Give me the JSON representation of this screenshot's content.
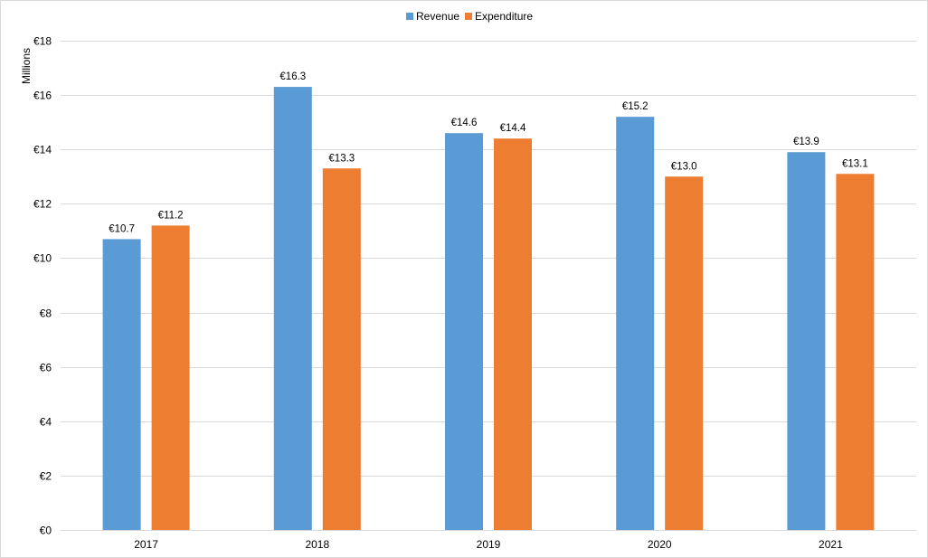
{
  "chart_data": {
    "type": "bar",
    "title": "",
    "xlabel": "",
    "ylabel": "Millions",
    "categories": [
      "2017",
      "2018",
      "2019",
      "2020",
      "2021"
    ],
    "series": [
      {
        "name": "Revenue",
        "color": "#5B9BD5",
        "values": [
          10.7,
          16.3,
          14.6,
          15.2,
          13.9
        ],
        "labels": [
          "€10.7",
          "€16.3",
          "€14.6",
          "€15.2",
          "€13.9"
        ]
      },
      {
        "name": "Expenditure",
        "color": "#ED7D31",
        "values": [
          11.2,
          13.3,
          14.4,
          13.0,
          13.1
        ],
        "labels": [
          "€11.2",
          "€13.3",
          "€14.4",
          "€13.0",
          "€13.1"
        ]
      }
    ],
    "ylim": [
      0,
      18
    ],
    "y_ticks": [
      0,
      2,
      4,
      6,
      8,
      10,
      12,
      14,
      16,
      18
    ],
    "y_tick_labels": [
      "€0",
      "€2",
      "€4",
      "€6",
      "€8",
      "€10",
      "€12",
      "€14",
      "€16",
      "€18"
    ],
    "grid": true,
    "grid_color": "#D9D9D9",
    "legend_position": "top-center"
  }
}
